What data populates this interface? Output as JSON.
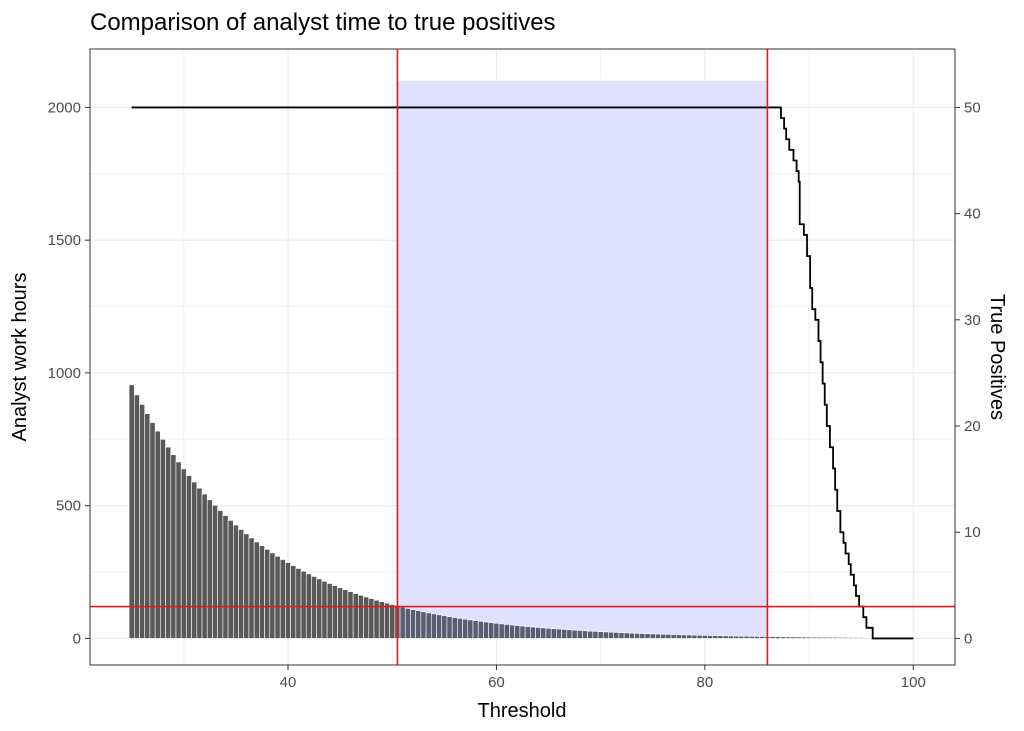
{
  "chart_data": {
    "type": "bar",
    "title": "Comparison of analyst time to true positives",
    "xlabel": "Threshold",
    "ylabel_left": "Analyst work hours",
    "ylabel_right": "True Positives",
    "xlim": [
      21,
      104
    ],
    "ylim_left": [
      -100,
      2220
    ],
    "ylim_right": [
      -2.5,
      55.5
    ],
    "x_ticks": [
      40,
      60,
      80,
      100
    ],
    "y_left_ticks": [
      0,
      500,
      1000,
      1500,
      2000
    ],
    "y_right_ticks": [
      0,
      10,
      20,
      30,
      40,
      50
    ],
    "theme": "bw",
    "grid": true,
    "series": [
      {
        "name": "Analyst work hours",
        "type": "bar",
        "axis": "left",
        "color": "#595959",
        "x_start": 25,
        "x_end": 95,
        "x_step": 0.5,
        "decay_anchor": {
          "x": 25,
          "y": 955
        },
        "decay_rate": 0.0805,
        "points": [
          {
            "x": 25,
            "y": 955
          },
          {
            "x": 30,
            "y": 665
          },
          {
            "x": 35,
            "y": 480
          },
          {
            "x": 40,
            "y": 315
          },
          {
            "x": 45,
            "y": 205
          },
          {
            "x": 50,
            "y": 125
          },
          {
            "x": 55,
            "y": 75
          },
          {
            "x": 60,
            "y": 45
          },
          {
            "x": 70,
            "y": 25
          },
          {
            "x": 80,
            "y": 15
          },
          {
            "x": 90,
            "y": 5
          },
          {
            "x": 95,
            "y": 0
          }
        ]
      },
      {
        "name": "True Positives",
        "type": "step-line",
        "axis": "right",
        "color": "#000000",
        "points": [
          [
            25,
            50
          ],
          [
            87,
            50
          ],
          [
            87.3,
            49
          ],
          [
            87.6,
            48
          ],
          [
            87.8,
            47
          ],
          [
            88.1,
            46
          ],
          [
            88.5,
            45
          ],
          [
            88.8,
            44
          ],
          [
            89,
            43
          ],
          [
            89.1,
            39
          ],
          [
            89.5,
            38
          ],
          [
            89.8,
            36
          ],
          [
            90.1,
            33
          ],
          [
            90.3,
            31
          ],
          [
            90.6,
            30
          ],
          [
            90.9,
            28
          ],
          [
            91.1,
            26
          ],
          [
            91.3,
            24
          ],
          [
            91.5,
            22
          ],
          [
            91.7,
            20
          ],
          [
            92,
            18
          ],
          [
            92.3,
            16
          ],
          [
            92.5,
            14
          ],
          [
            92.7,
            12
          ],
          [
            93,
            10
          ],
          [
            93.3,
            9
          ],
          [
            93.5,
            8
          ],
          [
            93.8,
            7
          ],
          [
            94,
            6
          ],
          [
            94.3,
            5
          ],
          [
            94.5,
            4
          ],
          [
            94.8,
            3
          ],
          [
            95.2,
            2
          ],
          [
            95.5,
            1
          ],
          [
            96.1,
            0
          ],
          [
            100,
            0
          ]
        ]
      }
    ],
    "shaded_region": {
      "x": [
        50.5,
        86
      ],
      "y_left": [
        0,
        2100
      ],
      "color": "#e0e0ff"
    },
    "reference_lines": {
      "color": "#e31a1c",
      "vertical": [
        50.5,
        86
      ],
      "horizontal_left": [
        120
      ]
    }
  }
}
